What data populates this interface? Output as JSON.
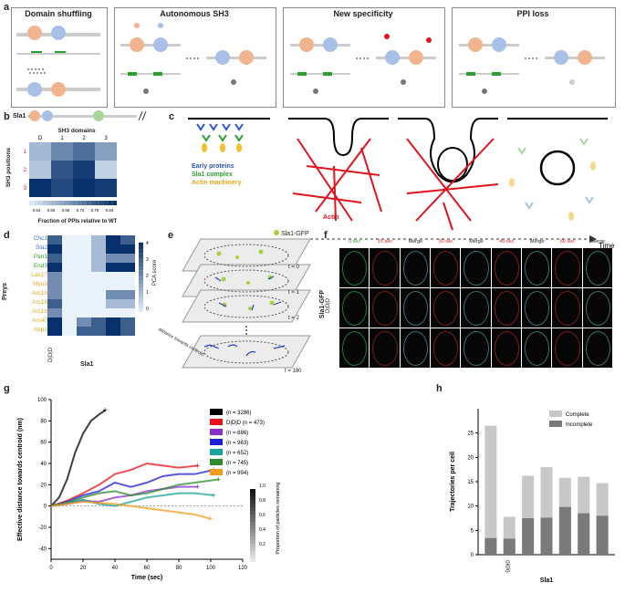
{
  "panels": {
    "a": {
      "letter": "a",
      "titles": [
        "Domain shuffling",
        "Autonomous SH3",
        "New specificity",
        "PPI loss"
      ],
      "domain_label": "SH3"
    },
    "b": {
      "letter": "b",
      "protein": "Sla1",
      "domain_axis_title": "SH3 domains",
      "domain_ticks": [
        "D",
        "1",
        "2",
        "3"
      ],
      "position_axis_title": "SH3 positions",
      "position_ticks": [
        "1",
        "2",
        "3"
      ],
      "colorbar_title": "Fraction of PPIs relative to WT",
      "colorbar_ticks": [
        "0.54",
        "0.60",
        "0.66",
        "0.72",
        "0.79",
        "0.84"
      ]
    },
    "c": {
      "letter": "c",
      "legend": [
        "Early proteins",
        "Sla1 complex",
        "Actin machinery"
      ],
      "actin_label": "Actin",
      "time_label": "Time"
    },
    "d": {
      "letter": "d",
      "y_title": "Preys",
      "x_title": "Sla1",
      "preys": [
        "Chc1",
        "Sla2",
        "Pan1",
        "End3",
        "Las17",
        "Myo5",
        "Arc15",
        "Arc18",
        "Arc19",
        "Arc40",
        "Abp1"
      ],
      "col_label": "D|D|D",
      "colorbar_title": "PCA score",
      "colorbar_ticks": [
        "0",
        "1",
        "2",
        "3",
        "4"
      ]
    },
    "e": {
      "letter": "e",
      "legend": "Sla1-GFP",
      "frames": [
        "t = 0",
        "t = 1",
        "t = 2",
        "t = 180"
      ],
      "axis_label": "distance towards centroid"
    },
    "f": {
      "letter": "f",
      "columns": [
        "0 sec",
        "15 sec",
        "Merge",
        "30 sec",
        "Merge",
        "45 sec",
        "Merge",
        "60 sec",
        "Merge"
      ],
      "row_label": "Sla1-GFP",
      "row_mid": "D|D|D"
    },
    "g": {
      "letter": "g",
      "legend": [
        "(n = 3286)",
        "D|D|D  (n = 473)",
        "(n = 686)",
        "(n = 963)",
        "(n = 652)",
        "(n = 745)",
        "(n = 994)"
      ],
      "legend_colors": [
        "#000000",
        "#e8141c",
        "#8b2fc9",
        "#1f1fd6",
        "#1aa39a",
        "#2e8b2e",
        "#f39a1b"
      ],
      "colorbar_title": "Proportion of particles remaining",
      "colorbar_ticks": [
        "0.2",
        "0.4",
        "0.6",
        "0.8",
        "1.0"
      ]
    },
    "h": {
      "letter": "h",
      "x_title": "Sla1"
    }
  },
  "chart_data": [
    {
      "type": "line",
      "panel": "g",
      "xlabel": "Time (sec)",
      "ylabel": "Effective distance towards centroid (nm)",
      "xlim": [
        0,
        120
      ],
      "ylim": [
        -50,
        100
      ],
      "xticks": [
        0,
        20,
        40,
        60,
        80,
        100,
        120
      ],
      "yticks": [
        -40,
        -20,
        0,
        20,
        40,
        60,
        80,
        100
      ],
      "series": [
        {
          "color": "#000000",
          "x": [
            0,
            5,
            10,
            15,
            20,
            25,
            30,
            34
          ],
          "y": [
            0,
            8,
            25,
            50,
            68,
            80,
            86,
            90
          ]
        },
        {
          "color": "#e8141c",
          "x": [
            0,
            10,
            20,
            30,
            40,
            50,
            60,
            70,
            80,
            92
          ],
          "y": [
            0,
            5,
            12,
            20,
            30,
            34,
            40,
            38,
            36,
            38
          ]
        },
        {
          "color": "#8b2fc9",
          "x": [
            0,
            10,
            20,
            30,
            40,
            50,
            60,
            70,
            80,
            92
          ],
          "y": [
            0,
            2,
            5,
            4,
            8,
            10,
            14,
            16,
            18,
            18
          ]
        },
        {
          "color": "#1f1fd6",
          "x": [
            0,
            10,
            20,
            30,
            40,
            50,
            60,
            70,
            80,
            90,
            102
          ],
          "y": [
            0,
            4,
            10,
            14,
            22,
            18,
            22,
            28,
            30,
            30,
            34
          ]
        },
        {
          "color": "#1aa39a",
          "x": [
            0,
            10,
            20,
            30,
            40,
            50,
            60,
            70,
            80,
            90,
            102
          ],
          "y": [
            0,
            3,
            6,
            2,
            0,
            4,
            8,
            10,
            12,
            12,
            10
          ]
        },
        {
          "color": "#2e8b2e",
          "x": [
            0,
            10,
            20,
            30,
            40,
            50,
            60,
            70,
            80,
            90,
            105
          ],
          "y": [
            0,
            3,
            8,
            12,
            14,
            10,
            12,
            16,
            20,
            22,
            25
          ]
        },
        {
          "color": "#f39a1b",
          "x": [
            0,
            10,
            20,
            30,
            40,
            50,
            60,
            70,
            80,
            90,
            100
          ],
          "y": [
            0,
            2,
            4,
            3,
            2,
            0,
            -2,
            -4,
            -6,
            -8,
            -12
          ]
        }
      ]
    },
    {
      "type": "bar",
      "panel": "h",
      "ylabel": "Trajectories per cell",
      "ylim": [
        0,
        30
      ],
      "yticks": [
        0,
        5,
        10,
        15,
        20,
        25
      ],
      "series": [
        {
          "name": "Complete",
          "color": "#c8c8c8",
          "values": [
            26.5,
            7.8,
            16.2,
            18,
            15.8,
            16,
            14.7
          ]
        },
        {
          "name": "Incomplete",
          "color": "#7a7a7a",
          "values": [
            3.4,
            3.3,
            7.5,
            7.6,
            9.8,
            8.5,
            8.0
          ]
        }
      ],
      "categories": [
        "",
        "D|D|D",
        "",
        "",
        "",
        "",
        ""
      ]
    },
    {
      "type": "heatmap",
      "panel": "b",
      "values": [
        [
          0.62,
          0.7,
          0.74,
          0.66
        ],
        [
          0.6,
          0.78,
          0.82,
          0.58
        ],
        [
          0.84,
          0.8,
          0.84,
          0.82
        ]
      ]
    }
  ]
}
